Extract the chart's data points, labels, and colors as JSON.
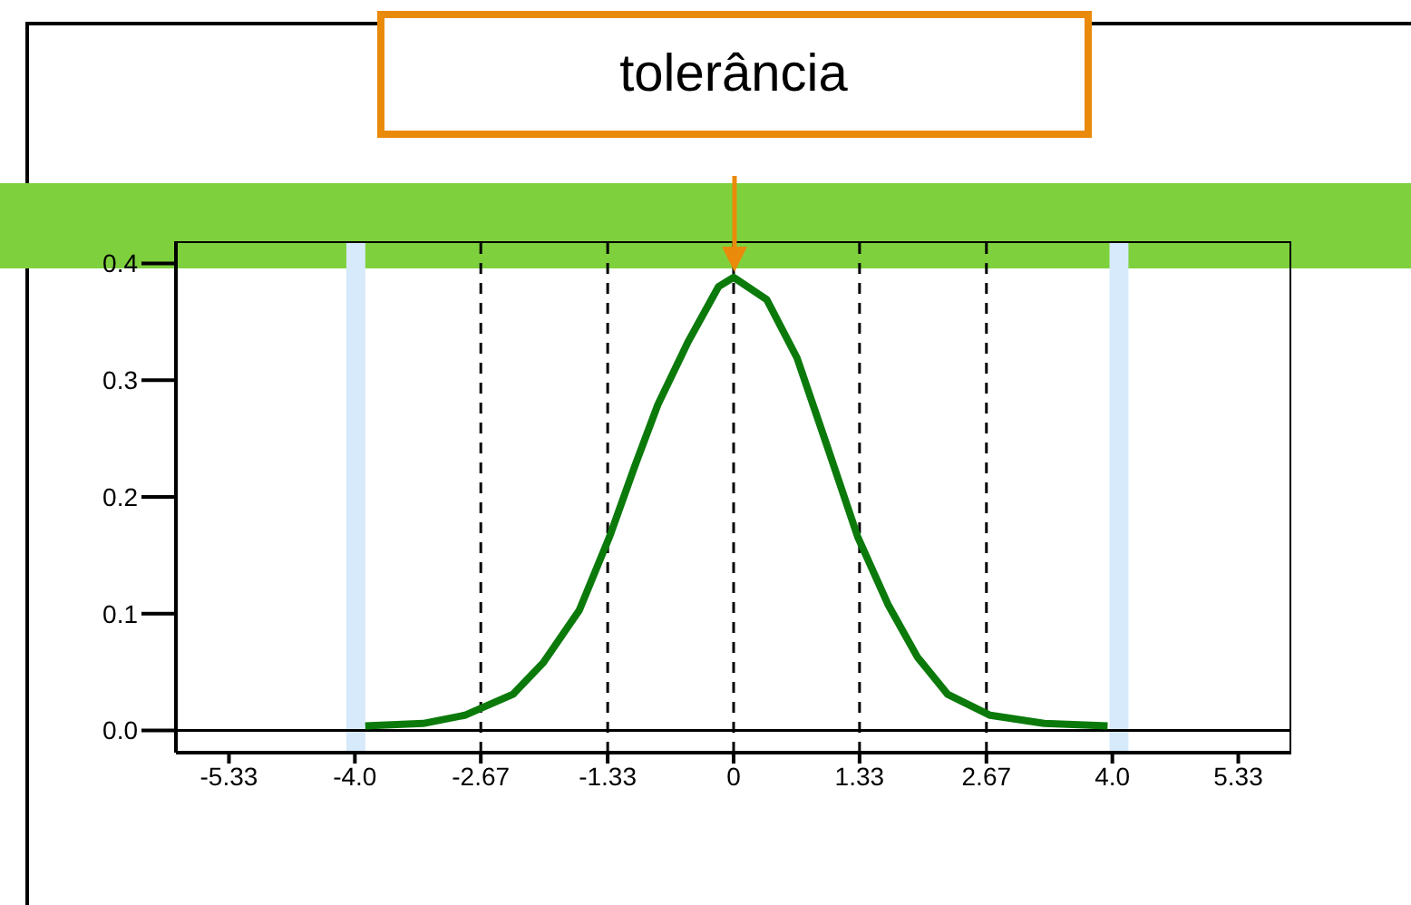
{
  "chart_data": {
    "type": "line",
    "x": [
      -3.89,
      -3.28,
      -2.84,
      -2.33,
      -2.01,
      -1.63,
      -1.31,
      -1.05,
      -0.8,
      -0.48,
      -0.16,
      0,
      0.35,
      0.67,
      0.99,
      1.31,
      1.63,
      1.94,
      2.26,
      2.71,
      3.28,
      3.95
    ],
    "series": [
      {
        "color": "#0b7a0b",
        "values": [
          0.004,
          0.006,
          0.013,
          0.031,
          0.058,
          0.103,
          0.166,
          0.225,
          0.279,
          0.333,
          0.38,
          0.388,
          0.369,
          0.319,
          0.243,
          0.166,
          0.108,
          0.063,
          0.031,
          0.013,
          0.006,
          0.004
        ]
      }
    ],
    "xlim": [
      -5.89,
      5.89
    ],
    "xticks": [
      -5.33,
      {
        "value": -4,
        "label": "-4.0"
      },
      -2.67,
      -1.33,
      0,
      1.33,
      2.67,
      {
        "value": 4,
        "label": "4.0"
      },
      5.33
    ],
    "ylim": [
      -0.019,
      0.419
    ],
    "yticks": [
      {
        "value": 0,
        "label": "0.0"
      },
      0.1,
      0.2,
      0.3,
      0.4
    ],
    "ref_lines": [
      {
        "axis": "y",
        "value": 0,
        "color": "#000000",
        "line_style": "solid"
      },
      {
        "axis": "x",
        "value": -2.67,
        "color": "#000000",
        "line_style": "dashed"
      },
      {
        "axis": "x",
        "value": -1.33,
        "color": "#000000",
        "line_style": "dashed"
      },
      {
        "axis": "x",
        "value": 0,
        "color": "#000000",
        "line_style": "dashed"
      },
      {
        "axis": "x",
        "value": 1.33,
        "color": "#000000",
        "line_style": "dashed"
      },
      {
        "axis": "x",
        "value": 2.67,
        "color": "#000000",
        "line_style": "dashed"
      }
    ],
    "bands": [
      {
        "axis": "x",
        "from": -4.09,
        "to": -3.89,
        "color": "#d6eafb"
      },
      {
        "axis": "x",
        "from": 3.97,
        "to": 4.17,
        "color": "#d6eafb"
      }
    ],
    "annotations": [
      "tolerância"
    ],
    "grid": false,
    "legend": false,
    "marker": "none",
    "line_style": "solid"
  }
}
